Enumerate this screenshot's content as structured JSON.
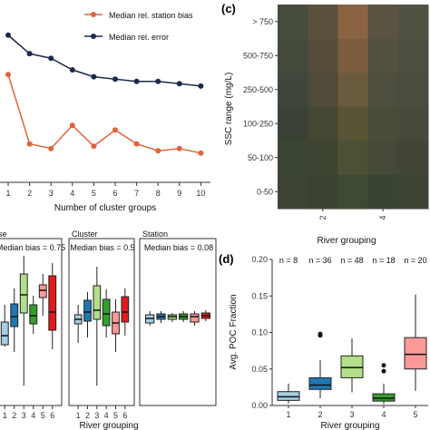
{
  "chart_data": [
    {
      "panel": "",
      "type": "line",
      "x": [
        1,
        2,
        3,
        4,
        5,
        6,
        7,
        8,
        9,
        10
      ],
      "xlabel": "Number of cluster groups",
      "ylabel": "",
      "legend_position": "top-right",
      "grid": false,
      "ylim": [
        0,
        1
      ],
      "series": [
        {
          "name": "Median rel. station bias",
          "color": "#e0643c",
          "values": [
            0.58,
            0.28,
            0.26,
            0.36,
            0.27,
            0.34,
            0.28,
            0.25,
            0.26,
            0.24
          ]
        },
        {
          "name": "Median rel. error",
          "color": "#1b2a4a",
          "values": [
            0.75,
            0.67,
            0.65,
            0.6,
            0.57,
            0.56,
            0.55,
            0.55,
            0.54,
            0.53
          ]
        }
      ]
    },
    {
      "panel": "(c)",
      "type": "heatmap",
      "xlabel": "River grouping",
      "ylabel": "SSC range (mg/L)",
      "x_tick_labels": [
        "2",
        "4"
      ],
      "y_categories": [
        "0-50",
        "50-100",
        "100-250",
        "250-500",
        "500-750",
        "> 750"
      ],
      "columns": 5,
      "colors": [
        [
          "#3c4436",
          "#3c4232",
          "#3e4a34",
          "#3a4434",
          "#3c4436"
        ],
        [
          "#3a4634",
          "#3e4432",
          "#4c5034",
          "#454a38",
          "#414638"
        ],
        [
          "#3a4236",
          "#464634",
          "#5a5436",
          "#4a4c3a",
          "#464a3c"
        ],
        [
          "#41463a",
          "#504a38",
          "#6a5a3e",
          "#4e4e3e",
          "#4a4c40"
        ],
        [
          "#434a3c",
          "#554c3a",
          "#7a5e3e",
          "#545040",
          "#4c4e42"
        ],
        [
          "#464c3e",
          "#5a503c",
          "#8a6442",
          "#5a5442",
          "#505244"
        ]
      ]
    },
    {
      "panel": "",
      "type": "box",
      "xlabel": "River grouping",
      "ylabel": "",
      "facets": [
        {
          "title": "se",
          "annotation": "Median bias = 0.75",
          "tick_labels": [
            "1",
            "2",
            "3",
            "4",
            "5",
            "6"
          ]
        },
        {
          "title": "Cluster",
          "annotation": "Median bias = 0.5",
          "tick_labels": [
            "1",
            "2",
            "3",
            "4",
            "5",
            "6"
          ]
        },
        {
          "title": "Station",
          "annotation": "Median bias = 0.08",
          "tick_labels": []
        }
      ],
      "box_colors": [
        "#a6cee3",
        "#1f78b4",
        "#b2df8a",
        "#33a02c",
        "#fb9a99",
        "#e31a1c"
      ]
    },
    {
      "panel": "(d)",
      "type": "box",
      "xlabel": "River grouping",
      "ylabel": "Avg. POC Fraction",
      "ylim": [
        0,
        0.2
      ],
      "y_ticks": [
        "0.00",
        "0.05",
        "0.10",
        "0.15",
        "0.20"
      ],
      "categories": [
        "1",
        "2",
        "3",
        "4",
        "5"
      ],
      "counts": [
        "n = 8",
        "n = 36",
        "n = 48",
        "n = 18",
        "n = 20"
      ],
      "colors": [
        "#a6cee3",
        "#1f78b4",
        "#b2df8a",
        "#33a02c",
        "#fb9a99"
      ],
      "boxes": [
        {
          "min": 0.003,
          "q1": 0.007,
          "median": 0.012,
          "q3": 0.019,
          "max": 0.03,
          "outliers": []
        },
        {
          "min": 0.01,
          "q1": 0.022,
          "median": 0.028,
          "q3": 0.038,
          "max": 0.062,
          "outliers": [
            0.096,
            0.098
          ]
        },
        {
          "min": 0.018,
          "q1": 0.038,
          "median": 0.052,
          "q3": 0.068,
          "max": 0.092,
          "outliers": []
        },
        {
          "min": 0.002,
          "q1": 0.006,
          "median": 0.01,
          "q3": 0.016,
          "max": 0.03,
          "outliers": [
            0.047,
            0.055
          ]
        },
        {
          "min": 0.02,
          "q1": 0.05,
          "median": 0.07,
          "q3": 0.093,
          "max": 0.152,
          "outliers": []
        }
      ]
    }
  ]
}
